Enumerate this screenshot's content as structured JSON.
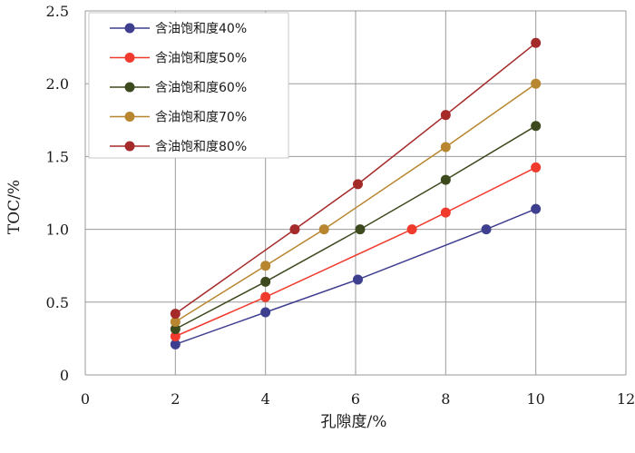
{
  "chart_data": {
    "type": "line",
    "title": "",
    "xlabel": "孔隙度/%",
    "ylabel": "TOC/%",
    "xlim": [
      0,
      12
    ],
    "ylim": [
      0,
      2.5
    ],
    "xticks": [
      0,
      2,
      4,
      6,
      8,
      10,
      12
    ],
    "yticks": [
      0,
      0.5,
      1.0,
      1.5,
      2.0,
      2.5
    ],
    "xtick_labels": [
      "0",
      "2",
      "4",
      "6",
      "8",
      "10",
      "12"
    ],
    "ytick_labels": [
      "0",
      "0.5",
      "1.0",
      "1.5",
      "2.0",
      "2.5"
    ],
    "grid": true,
    "legend_position": "top-left",
    "series": [
      {
        "name": "含油饱和度40%",
        "color": "#3f3f8f",
        "x": [
          2,
          4,
          6.05,
          8.9,
          10
        ],
        "y": [
          0.21,
          0.43,
          0.655,
          1.0,
          1.14
        ]
      },
      {
        "name": "含油饱和度50%",
        "color": "#f03a2e",
        "x": [
          2,
          4,
          7.25,
          8,
          10
        ],
        "y": [
          0.265,
          0.535,
          1.0,
          1.115,
          1.425
        ]
      },
      {
        "name": "含油饱和度60%",
        "color": "#3d4a1e",
        "x": [
          2,
          4,
          6.1,
          8,
          10
        ],
        "y": [
          0.315,
          0.64,
          1.0,
          1.34,
          1.71
        ]
      },
      {
        "name": "含油饱和度70%",
        "color": "#b8862e",
        "x": [
          2,
          4,
          5.3,
          8,
          10
        ],
        "y": [
          0.365,
          0.75,
          1.0,
          1.565,
          2.0
        ]
      },
      {
        "name": "含油饱和度80%",
        "color": "#a52a2a",
        "x": [
          2,
          4.65,
          6.05,
          8,
          10
        ],
        "y": [
          0.42,
          1.0,
          1.31,
          1.785,
          2.28
        ]
      }
    ]
  }
}
